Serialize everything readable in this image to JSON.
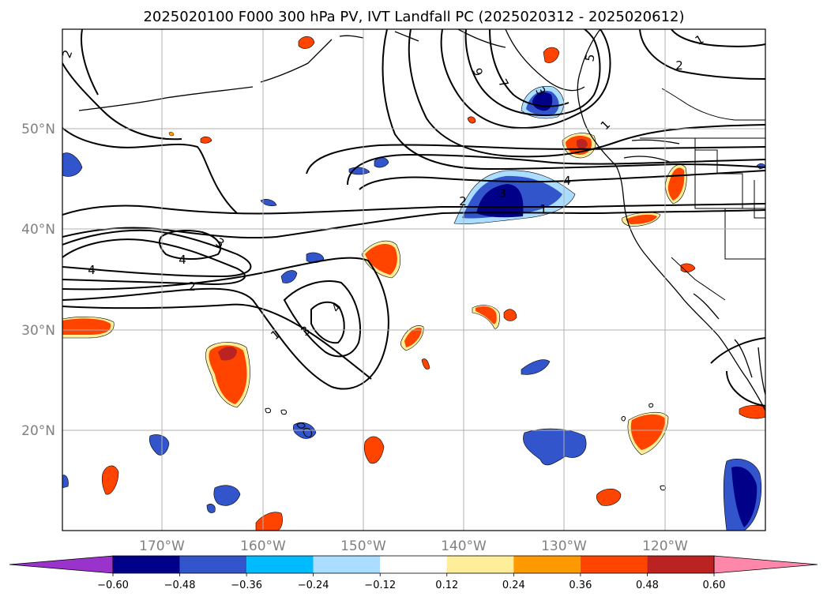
{
  "title": "2025020100 F000 300 hPa PV, IVT Landfall PC (2025020312 - 2025020612)",
  "map": {
    "lat_labels": [
      "50°N",
      "40°N",
      "30°N",
      "20°N"
    ],
    "lon_labels": [
      "170°W",
      "160°W",
      "150°W",
      "140°W",
      "130°W",
      "120°W"
    ],
    "contour_labels": [
      "2",
      "1",
      "9",
      "7",
      "5",
      "1",
      "2",
      "4",
      "2",
      "3",
      "1",
      "3",
      "4",
      "2",
      "4",
      "3",
      "1",
      "3",
      "4"
    ]
  },
  "colorbar": {
    "ticks": [
      "−0.60",
      "−0.48",
      "−0.36",
      "−0.24",
      "−0.12",
      "0.12",
      "0.24",
      "0.36",
      "0.48",
      "0.60"
    ],
    "colors": [
      "#9933cc",
      "#000088",
      "#3355cc",
      "#00bbff",
      "#aaddff",
      "#ffffff",
      "#ffee99",
      "#ff9900",
      "#ff4400",
      "#bb2222",
      "#ff88aa"
    ]
  },
  "legend_colors": {
    "positive": [
      "#ffee99",
      "#ff9900",
      "#ff4400",
      "#bb2222"
    ],
    "negative": [
      "#aaddff",
      "#00bbff",
      "#3355cc",
      "#000088"
    ],
    "contour": "#000000",
    "coast": "#000000",
    "grid": "#b0b0b0"
  }
}
